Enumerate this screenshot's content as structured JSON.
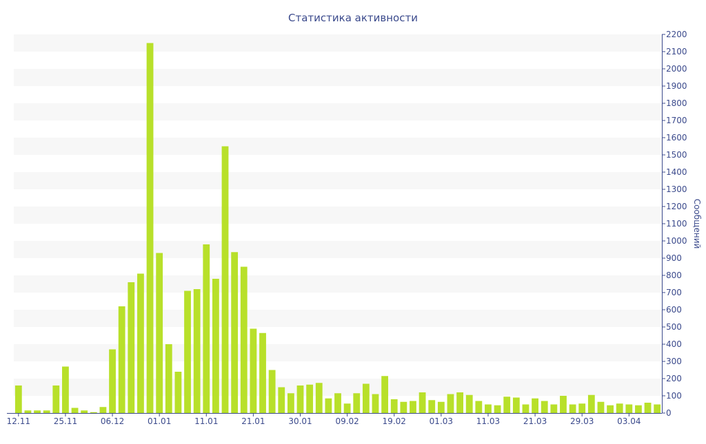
{
  "chart_data": {
    "type": "bar",
    "title": "Статистика активности",
    "xlabel": "",
    "ylabel": "Сообщений",
    "ylim": [
      0,
      2200
    ],
    "ytick_step": 100,
    "y_axis_side": "right",
    "grid": "alternating horizontal bands",
    "x_tick_labels": [
      {
        "label": "12.11",
        "index": 0
      },
      {
        "label": "25.11",
        "index": 5
      },
      {
        "label": "06.12",
        "index": 10
      },
      {
        "label": "01.01",
        "index": 15
      },
      {
        "label": "11.01",
        "index": 20
      },
      {
        "label": "21.01",
        "index": 25
      },
      {
        "label": "30.01",
        "index": 30
      },
      {
        "label": "09.02",
        "index": 35
      },
      {
        "label": "19.02",
        "index": 40
      },
      {
        "label": "01.03",
        "index": 45
      },
      {
        "label": "11.03",
        "index": 50
      },
      {
        "label": "21.03",
        "index": 55
      },
      {
        "label": "29.03",
        "index": 60
      },
      {
        "label": "03.04",
        "index": 65
      }
    ],
    "values": [
      160,
      15,
      15,
      15,
      160,
      270,
      30,
      15,
      5,
      35,
      370,
      620,
      760,
      810,
      2150,
      930,
      400,
      240,
      710,
      720,
      980,
      780,
      1550,
      935,
      850,
      490,
      465,
      250,
      150,
      115,
      160,
      165,
      175,
      85,
      115,
      55,
      115,
      170,
      110,
      215,
      80,
      65,
      70,
      120,
      75,
      65,
      110,
      120,
      105,
      70,
      50,
      45,
      95,
      90,
      50,
      85,
      70,
      50,
      100,
      50,
      55,
      105,
      65,
      45,
      55,
      50,
      45,
      60,
      50
    ],
    "colors": {
      "bar": "#b8e02a",
      "text": "#3b4a8c",
      "band": "#f7f7f7",
      "axis": "#3b4a8c"
    }
  }
}
